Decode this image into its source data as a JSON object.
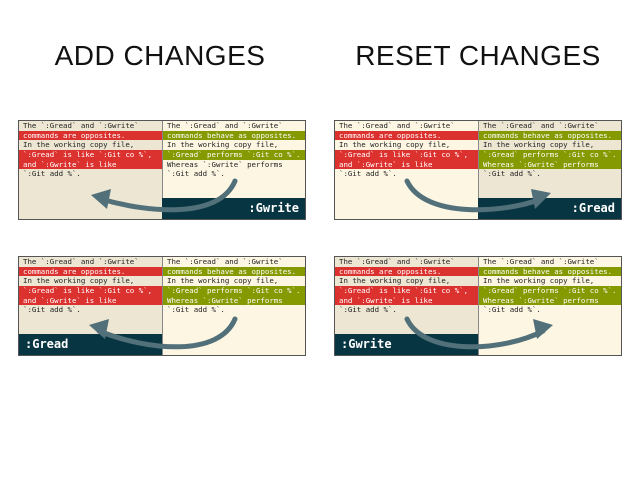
{
  "headings": {
    "add": "ADD CHANGES",
    "reset": "RESET CHANGES"
  },
  "left_lines": [
    "The `:Gread` and `:Gwrite`",
    "commands are opposites.",
    "In the working copy file,",
    "`:Gread` is like `:Git co %`,",
    "and `:Gwrite` is like",
    "`:Git add %`."
  ],
  "right_lines_a": [
    "The `:Gread` and `:Gwrite`",
    "commands behave as opposites.",
    "In the working copy file,",
    "`:Gread` performs `:Git co %`.",
    "Whereas `:Gwrite` performs",
    "`:Git add %`."
  ],
  "right_lines_b": [
    "The `:Gread` and `:Gwrite`",
    "commands behave as opposites.",
    "In the working copy file,",
    "`:Gread` performs `:Git co %`.",
    "Whereas `:Gwrite` performs",
    "`:Git add %`."
  ],
  "commands": {
    "p1": ":Gwrite",
    "p2": ":Gread",
    "p3": ":Gread",
    "p4": ":Gwrite"
  },
  "colors": {
    "deleted": "#dc322f",
    "added": "#859900",
    "statusbar": "#073642",
    "arrow": "#52707a"
  }
}
